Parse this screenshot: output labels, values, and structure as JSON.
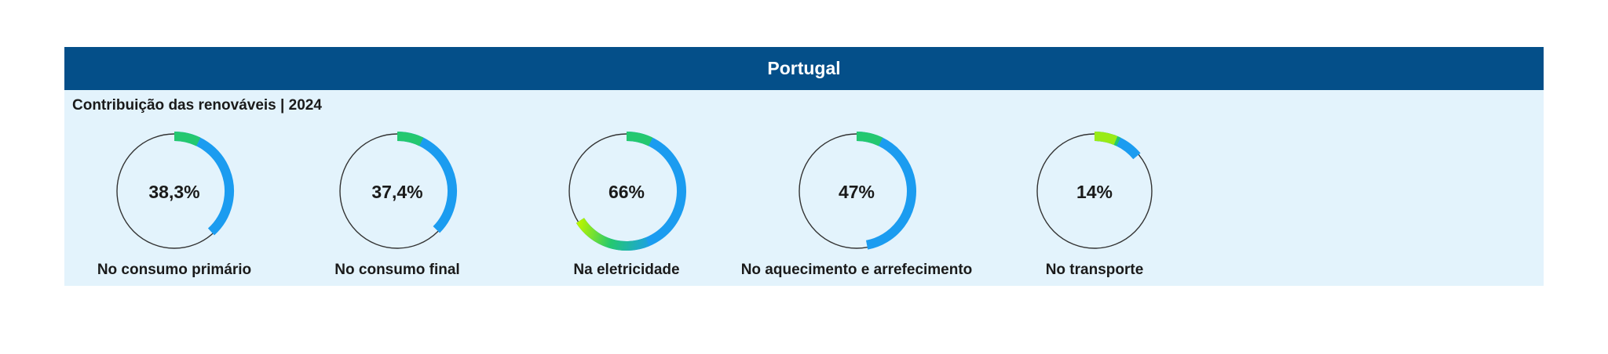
{
  "header": {
    "title": "Portugal"
  },
  "colors": {
    "header_bg": "#044f89",
    "panel_bg": "#e3f3fc",
    "arc_main": "#1b9cf0",
    "arc_gradient_start": "#b7f400",
    "arc_gradient_mid": "#24c870",
    "ring_outline": "#333333"
  },
  "chart_data": {
    "type": "donut-gauges",
    "title": "Contribuição das renováveis | 2024",
    "units": "%",
    "items": [
      {
        "label": "No consumo primário",
        "display": "38,3%",
        "value": 38.3
      },
      {
        "label": "No consumo final",
        "display": "37,4%",
        "value": 37.4
      },
      {
        "label": "Na eletricidade",
        "display": "66%",
        "value": 66
      },
      {
        "label": "No aquecimento e arrefecimento",
        "display": "47%",
        "value": 47
      },
      {
        "label": "No transporte",
        "display": "14%",
        "value": 14
      }
    ]
  }
}
